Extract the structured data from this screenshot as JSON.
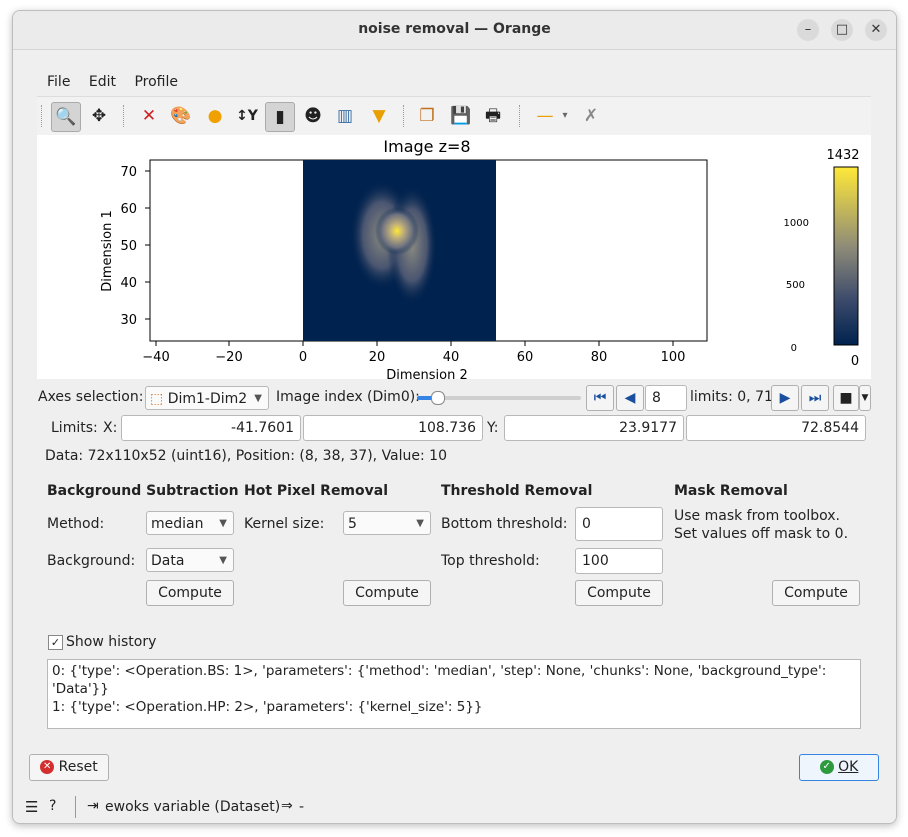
{
  "window": {
    "title": "noise removal — Orange"
  },
  "menu": [
    "File",
    "Edit",
    "Profile"
  ],
  "toolbar": {
    "icons": [
      "zoom-icon",
      "pan-icon",
      "reset-zoom-icon",
      "colormap-icon",
      "marker-icon",
      "y-axis-icon",
      "aspect-ratio-icon",
      "mask-icon",
      "histogram-icon",
      "filter-icon",
      "copy-icon",
      "save-icon",
      "print-icon",
      "line-style-icon",
      "crosshair-icon"
    ]
  },
  "plot": {
    "title": "Image z=8",
    "xlabel": "Dimension 2",
    "ylabel": "Dimension 1",
    "xticks": [
      "−40",
      "−20",
      "0",
      "20",
      "40",
      "60",
      "80",
      "100"
    ],
    "yticks": [
      "70",
      "60",
      "50",
      "40",
      "30"
    ],
    "colorbar": {
      "max_label": "1432",
      "min_label": "0",
      "ticks": [
        "1000",
        "500",
        "0"
      ]
    }
  },
  "axes_selection": {
    "label": "Axes selection:",
    "value": "Dim1-Dim2",
    "image_index_label": "Image index (Dim0):",
    "index_value": "8",
    "limits_text": "limits: 0, 71"
  },
  "limits": {
    "label": "Limits:",
    "x_label": "X:",
    "x_min": "-41.7601",
    "x_max": "108.736",
    "y_label": "Y:",
    "y_min": "23.9177",
    "y_max": "72.8544"
  },
  "data_info": "Data: 72x110x52 (uint16), Position: (8, 38, 37), Value: 10",
  "background_subtraction": {
    "title": "Background Subtraction",
    "method_label": "Method:",
    "method_value": "median",
    "background_label": "Background:",
    "background_value": "Data",
    "compute": "Compute"
  },
  "hot_pixel": {
    "title": "Hot Pixel Removal",
    "kernel_label": "Kernel size:",
    "kernel_value": "5",
    "compute": "Compute"
  },
  "threshold": {
    "title": "Threshold Removal",
    "bottom_label": "Bottom threshold:",
    "bottom_value": "0",
    "top_label": "Top threshold:",
    "top_value": "100",
    "compute": "Compute"
  },
  "mask": {
    "title": "Mask Removal",
    "desc1": "Use mask from toolbox.",
    "desc2": " Set values off mask to 0.",
    "compute": "Compute"
  },
  "history": {
    "checkbox_label": "Show history",
    "checked": true,
    "lines": [
      "0: {'type': <Operation.BS: 1>, 'parameters': {'method': 'median', 'step': None, 'chunks': None, 'background_type': 'Data'}}",
      "1: {'type': <Operation.HP: 2>, 'parameters': {'kernel_size': 5}}"
    ]
  },
  "buttons": {
    "reset": "Reset",
    "ok": "OK"
  },
  "status": {
    "input_label": "ewoks variable (Dataset)",
    "output_label": "-"
  },
  "colors": {
    "accent": "#3584e4",
    "image_bg": "#00224e",
    "image_hot": "#fee838"
  }
}
